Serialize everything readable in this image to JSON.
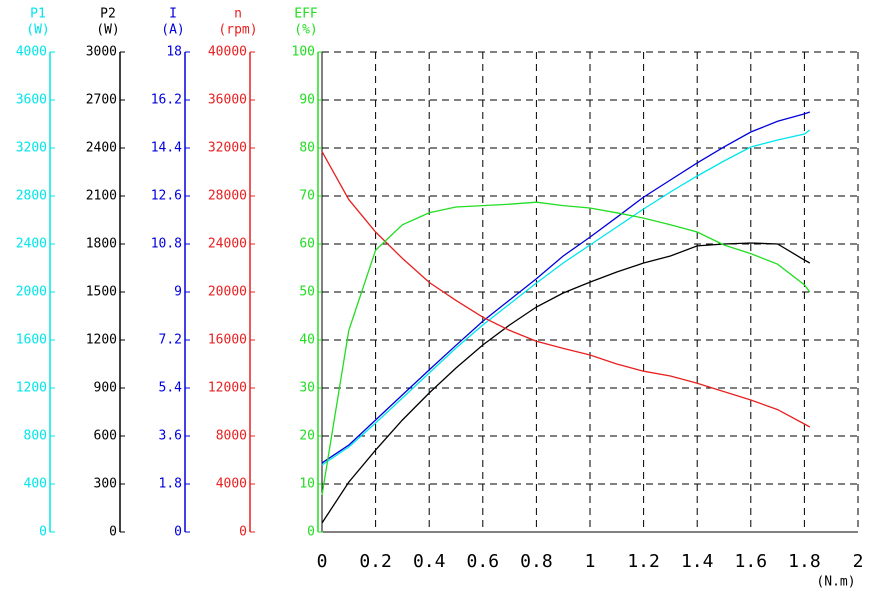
{
  "chart_data": {
    "type": "line",
    "xlabel": "(N.m)",
    "grid": true,
    "xlim": [
      0,
      2
    ],
    "xticks": [
      0,
      0.2,
      0.4,
      0.6,
      0.8,
      1,
      1.2,
      1.4,
      1.6,
      1.8,
      2
    ],
    "x": [
      0,
      0.1,
      0.2,
      0.3,
      0.4,
      0.5,
      0.6,
      0.7,
      0.8,
      0.9,
      1.0,
      1.1,
      1.2,
      1.3,
      1.4,
      1.5,
      1.6,
      1.7,
      1.8,
      1.82
    ],
    "series": [
      {
        "name": "P1",
        "unit": "(W)",
        "color": "#00e5ee",
        "ylim": [
          0,
          4000
        ],
        "yticks": [
          0,
          400,
          800,
          1200,
          1600,
          2000,
          2400,
          2800,
          3200,
          3600,
          4000
        ],
        "values": [
          558,
          708,
          908,
          1117,
          1325,
          1533,
          1725,
          1900,
          2075,
          2242,
          2392,
          2542,
          2692,
          2833,
          2967,
          3092,
          3208,
          3267,
          3317,
          3350
        ]
      },
      {
        "name": "P2",
        "unit": "(W)",
        "color": "#000000",
        "ylim": [
          0,
          3000
        ],
        "yticks": [
          0,
          300,
          600,
          900,
          1200,
          1500,
          1800,
          2100,
          2400,
          2700,
          3000
        ],
        "values": [
          56,
          312,
          512,
          700,
          869,
          1025,
          1169,
          1294,
          1406,
          1494,
          1562,
          1625,
          1681,
          1725,
          1788,
          1800,
          1806,
          1800,
          1700,
          1681
        ]
      },
      {
        "name": "I",
        "unit": "(A)",
        "color": "#0000dd",
        "ylim": [
          0,
          18
        ],
        "yticks": [
          0,
          1.8,
          3.6,
          5.4,
          7.2,
          9,
          10.8,
          12.6,
          14.4,
          16.2,
          18
        ],
        "values": [
          2.59,
          3.26,
          4.2,
          5.14,
          6.08,
          7.0,
          7.9,
          8.7,
          9.5,
          10.35,
          11.06,
          11.8,
          12.56,
          13.2,
          13.84,
          14.44,
          15.0,
          15.4,
          15.68,
          15.75
        ]
      },
      {
        "name": "n",
        "unit": "(rpm)",
        "color": "#e82020",
        "ylim": [
          0,
          40000
        ],
        "yticks": [
          0,
          4000,
          8000,
          12000,
          16000,
          20000,
          24000,
          28000,
          32000,
          36000,
          40000
        ],
        "values": [
          31700,
          27700,
          25000,
          22800,
          20800,
          19300,
          17900,
          16800,
          15900,
          15300,
          14750,
          14000,
          13400,
          13000,
          12400,
          11700,
          11000,
          10200,
          9000,
          8750
        ]
      },
      {
        "name": "EFF",
        "unit": "(%)",
        "color": "#22dd22",
        "ylim": [
          0,
          100
        ],
        "yticks": [
          0,
          10,
          20,
          30,
          40,
          50,
          60,
          70,
          80,
          90,
          100
        ],
        "values": [
          7.7,
          42,
          58.7,
          64,
          66.5,
          67.7,
          68,
          68.3,
          68.7,
          68,
          67.5,
          66.5,
          65.4,
          64,
          62.5,
          59.8,
          58,
          55.8,
          51.5,
          50
        ]
      }
    ]
  }
}
